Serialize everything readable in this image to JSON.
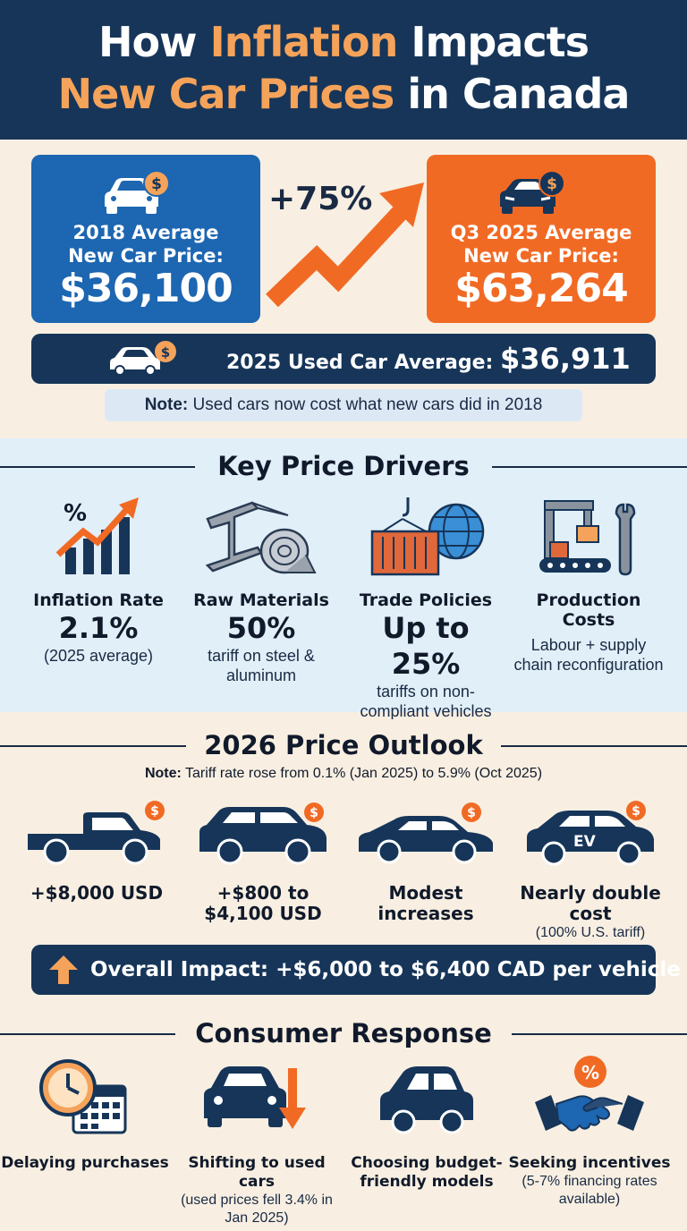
{
  "header": {
    "title_part1": "How ",
    "title_accent1": "Inflation",
    "title_part2": " Impacts",
    "title_accent2": "New Car Prices",
    "title_part3": " in Canada"
  },
  "comparison": {
    "left_label_line1": "2018 Average",
    "left_label_line2": "New Car Price:",
    "left_price": "$36,100",
    "change": "+75%",
    "right_label_line1": "Q3 2025 Average",
    "right_label_line2": "New Car Price:",
    "right_price": "$63,264",
    "used_label": "2025 Used Car Average: ",
    "used_price": "$36,911",
    "note_bold": "Note:",
    "note_text": " Used cars now cost what new cars did in 2018"
  },
  "drivers": {
    "title": "Key Price Drivers",
    "items": [
      {
        "name": "Inflation Rate",
        "value": "2.1%",
        "sub": "(2025 average)"
      },
      {
        "name": "Raw Materials",
        "value": "50%",
        "sub": "tariff on steel & aluminum"
      },
      {
        "name": "Trade Policies",
        "value": "Up to 25%",
        "sub": "tariffs on non-compliant vehicles"
      },
      {
        "name": "Production Costs",
        "value": "",
        "sub": "Labour + supply chain reconfiguration"
      }
    ]
  },
  "outlook": {
    "title": "2026 Price Outlook",
    "note_bold": "Note:",
    "note_text": " Tariff rate rose from 0.1% (Jan 2025) to 5.9% (Oct 2025)",
    "vehicles": [
      {
        "label": "+$8,000 USD",
        "sub": ""
      },
      {
        "label": "+$800 to $4,100 USD",
        "sub": ""
      },
      {
        "label": "Modest increases",
        "sub": ""
      },
      {
        "label": "Nearly double cost",
        "sub": "(100% U.S. tariff)"
      }
    ],
    "ev_badge": "EV",
    "impact": "Overall Impact: +$6,000 to $6,400 CAD per vehicle"
  },
  "response": {
    "title": "Consumer Response",
    "items": [
      {
        "name": "Delaying purchases",
        "sub": ""
      },
      {
        "name": "Shifting to used cars",
        "sub": "(used prices fell 3.4% in Jan 2025)"
      },
      {
        "name": "Choosing budget-friendly models",
        "sub": ""
      },
      {
        "name": "Seeking incentives",
        "sub": "(5-7% financing rates available)"
      }
    ]
  },
  "colors": {
    "navy": "#163559",
    "blue": "#1d66b1",
    "orange": "#f16a24",
    "accent": "#f5a35a",
    "light_blue": "#e1eff8",
    "cream": "#f8efe2"
  }
}
